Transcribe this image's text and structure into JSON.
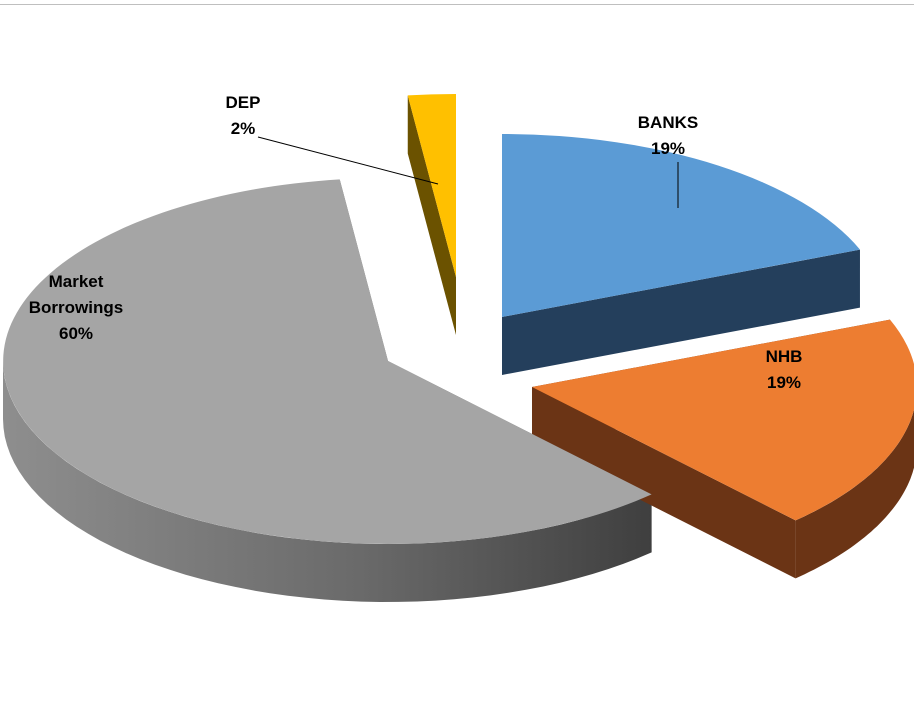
{
  "chart_data": {
    "type": "pie",
    "style": "3d-exploded",
    "slices": [
      {
        "label": "BANKS",
        "value": 19,
        "pct_label": "19%",
        "color": "#5b9bd5",
        "side_color": "#243f5c"
      },
      {
        "label": "NHB",
        "value": 19,
        "pct_label": "19%",
        "color": "#ed7d31",
        "side_color": "#6b3415"
      },
      {
        "label": "Market Borrowings",
        "label_lines": [
          "Market",
          "Borrowings"
        ],
        "value": 60,
        "pct_label": "60%",
        "color": "#a5a5a5",
        "side_color": "#6f6f6f"
      },
      {
        "label": "DEP",
        "value": 2,
        "pct_label": "2%",
        "color": "#ffc000",
        "side_color": "#6b5200"
      }
    ],
    "legend": "none",
    "data_labels": "outside-with-leaders"
  }
}
